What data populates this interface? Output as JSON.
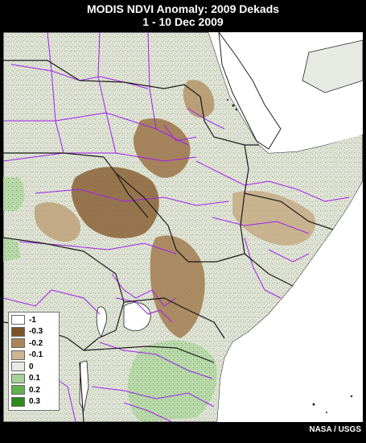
{
  "title": {
    "line1": "MODIS NDVI Anomaly: 2009 Dekads",
    "line2": "1 - 10 Dec 2009"
  },
  "credit": "NASA / USGS",
  "legend": [
    {
      "label": "-1",
      "color": "#ffffff"
    },
    {
      "label": "-0.3",
      "color": "#7a5428"
    },
    {
      "label": "-0.2",
      "color": "#a9855a"
    },
    {
      "label": "-0.1",
      "color": "#cdb592"
    },
    {
      "label": "0",
      "color": "#e9ece4"
    },
    {
      "label": "0.1",
      "color": "#a8cf98"
    },
    {
      "label": "0.2",
      "color": "#63b150"
    },
    {
      "label": "0.3",
      "color": "#2e8b1f"
    }
  ],
  "colors": {
    "background": "#000000",
    "sea": "#ffffff",
    "land": "#d8ddd2",
    "national_border": "#1a1a1a",
    "admin_border": "#a020f0"
  }
}
